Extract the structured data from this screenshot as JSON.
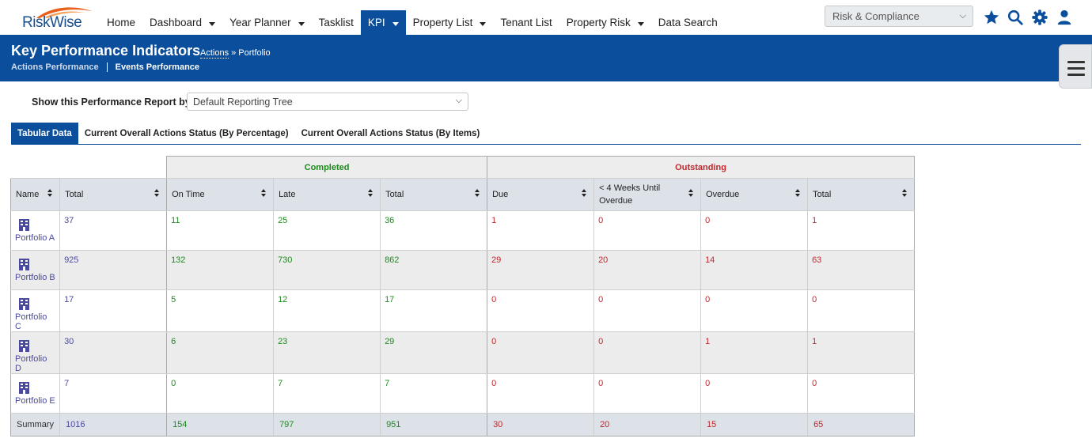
{
  "app": {
    "logo_text": "RiskWise"
  },
  "nav": {
    "items": [
      {
        "label": "Home",
        "dropdown": false
      },
      {
        "label": "Dashboard",
        "dropdown": true
      },
      {
        "label": "Year Planner",
        "dropdown": true
      },
      {
        "label": "Tasklist",
        "dropdown": false
      },
      {
        "label": "KPI",
        "dropdown": true,
        "active": true
      },
      {
        "label": "Property List",
        "dropdown": true
      },
      {
        "label": "Tenant List",
        "dropdown": false
      },
      {
        "label": "Property Risk",
        "dropdown": true
      },
      {
        "label": "Data Search",
        "dropdown": false
      }
    ],
    "module_select": "Risk & Compliance",
    "icons": [
      "star-icon",
      "search-icon",
      "gear-icon",
      "user-icon"
    ]
  },
  "banner": {
    "title": "Key Performance Indicators",
    "crumb_link": "Actions",
    "crumb_rest": " » Portfolio",
    "sub_a": "Actions Performance",
    "sub_b": "Events Performance"
  },
  "report": {
    "label": "Show this Performance Report by:",
    "selected": "Default Reporting Tree"
  },
  "tabs": [
    {
      "label": "Tabular Data",
      "active": true
    },
    {
      "label": "Current Overall Actions Status (By Percentage)",
      "active": false
    },
    {
      "label": "Current Overall Actions Status (By Items)",
      "active": false
    }
  ],
  "table": {
    "group_completed": "Completed",
    "group_outstanding": "Outstanding",
    "headers": {
      "name": "Name",
      "total": "Total",
      "on_time": "On Time",
      "late": "Late",
      "comp_total": "Total",
      "due": "Due",
      "weeks": "< 4 Weeks Until Overdue",
      "overdue": "Overdue",
      "out_total": "Total"
    },
    "rows": [
      {
        "name": "Portfolio A",
        "total": "37",
        "on_time": "11",
        "late": "25",
        "comp_total": "36",
        "due": "1",
        "weeks": "0",
        "overdue": "0",
        "out_total": "1"
      },
      {
        "name": "Portfolio B",
        "total": "925",
        "on_time": "132",
        "late": "730",
        "comp_total": "862",
        "due": "29",
        "weeks": "20",
        "overdue": "14",
        "out_total": "63"
      },
      {
        "name": "Portfolio C",
        "total": "17",
        "on_time": "5",
        "late": "12",
        "comp_total": "17",
        "due": "0",
        "weeks": "0",
        "overdue": "0",
        "out_total": "0"
      },
      {
        "name": "Portfolio D",
        "total": "30",
        "on_time": "6",
        "late": "23",
        "comp_total": "29",
        "due": "0",
        "weeks": "0",
        "overdue": "1",
        "out_total": "1"
      },
      {
        "name": "Portfolio E",
        "total": "7",
        "on_time": "0",
        "late": "7",
        "comp_total": "7",
        "due": "0",
        "weeks": "0",
        "overdue": "0",
        "out_total": "0"
      }
    ],
    "summary": {
      "label": "Summary",
      "total": "1016",
      "on_time": "154",
      "late": "797",
      "comp_total": "951",
      "due": "30",
      "weeks": "20",
      "overdue": "15",
      "out_total": "65"
    }
  },
  "colors": {
    "brand_blue": "#0b4f9c",
    "completed_green": "#1e8a1e",
    "outstanding_red": "#c0282d",
    "total_purple": "#4a4a9c"
  }
}
